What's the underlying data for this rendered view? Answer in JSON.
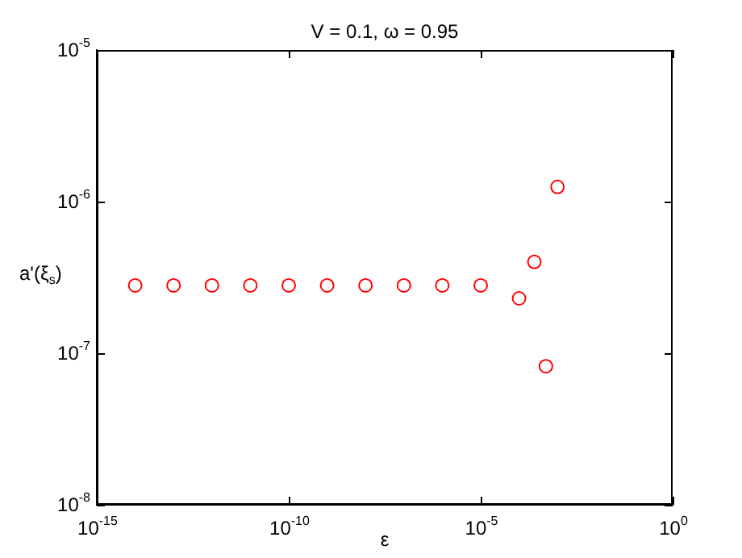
{
  "chart_data": {
    "type": "scatter",
    "title": "V = 0.1, ω = 0.95",
    "xlabel": "ε",
    "ylabel": "a'(ξ$_{s}$)",
    "x": [
      1e-14,
      1e-13,
      1e-12,
      1e-11,
      1e-10,
      1e-09,
      1e-08,
      1e-07,
      1e-06,
      1e-05,
      0.0001,
      0.00025,
      0.0005,
      0.001
    ],
    "series": [
      {
        "color": "#ff0000",
        "values": [
          2.8e-07,
          2.8e-07,
          2.8e-07,
          2.8e-07,
          2.8e-07,
          2.8e-07,
          2.8e-07,
          2.8e-07,
          2.8e-07,
          2.8e-07,
          2.3e-07,
          4e-07,
          8.2e-08,
          1.25e-06
        ]
      }
    ],
    "log": "xy",
    "marker": "circle",
    "grid": false,
    "legend": false,
    "xlim": [
      1e-15,
      1
    ],
    "ylim": [
      1e-08,
      1e-05
    ],
    "xticks": [
      {
        "value": 1e-15,
        "label": "10$^{-15}$"
      },
      {
        "value": 1e-10,
        "label": "10$^{-10}$"
      },
      {
        "value": 1e-05,
        "label": "10$^{-5}$"
      },
      {
        "value": 1,
        "label": "10$^{0}$"
      }
    ],
    "yticks": [
      {
        "value": 1e-08,
        "label": "10$^{-8}$"
      },
      {
        "value": 1e-07,
        "label": "10$^{-7}$"
      },
      {
        "value": 1e-06,
        "label": "10$^{-6}$"
      },
      {
        "value": 1e-05,
        "label": "10$^{-5}$"
      }
    ]
  }
}
